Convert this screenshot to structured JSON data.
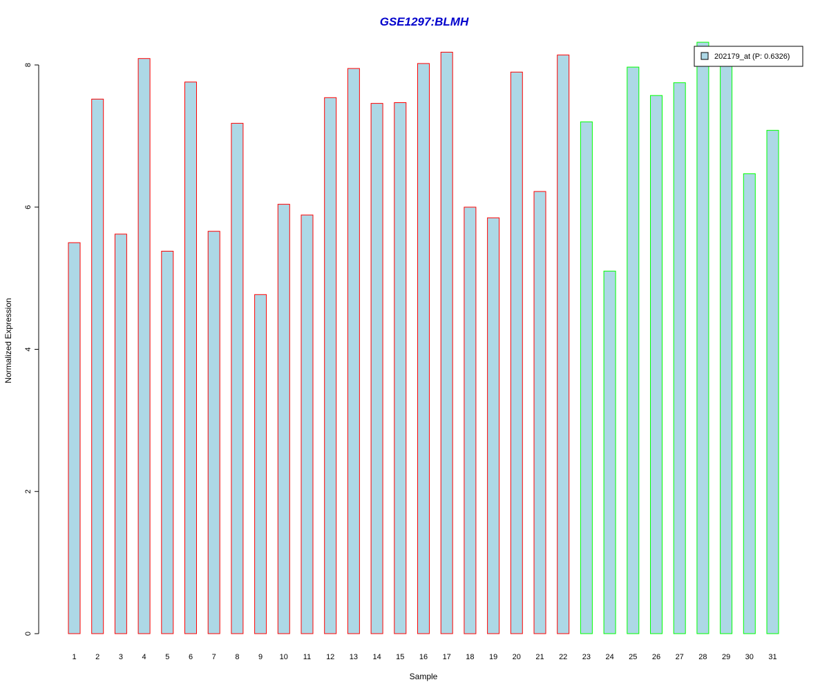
{
  "chart_data": {
    "type": "bar",
    "title": "GSE1297:BLMH",
    "xlabel": "Sample",
    "ylabel": "Normalized Expression",
    "ylim": [
      0,
      8
    ],
    "yticks": [
      0,
      2,
      4,
      6,
      8
    ],
    "grid": false,
    "legend": {
      "position": "top-right",
      "entries": [
        "202179_at (P: 0.6326)"
      ]
    },
    "categories": [
      "1",
      "2",
      "3",
      "4",
      "5",
      "6",
      "7",
      "8",
      "9",
      "10",
      "11",
      "12",
      "13",
      "14",
      "15",
      "16",
      "17",
      "18",
      "19",
      "20",
      "21",
      "22",
      "23",
      "24",
      "25",
      "26",
      "27",
      "28",
      "29",
      "30",
      "31"
    ],
    "values": [
      5.5,
      7.52,
      5.62,
      8.09,
      5.38,
      7.76,
      5.66,
      7.18,
      4.77,
      6.04,
      5.89,
      7.54,
      7.95,
      7.46,
      7.47,
      8.02,
      8.18,
      6.0,
      5.85,
      7.9,
      6.22,
      8.14,
      7.2,
      5.1,
      7.97,
      7.57,
      7.75,
      8.32,
      8.1,
      6.47,
      7.08
    ],
    "groups": [
      "red",
      "red",
      "red",
      "red",
      "red",
      "red",
      "red",
      "red",
      "red",
      "red",
      "red",
      "red",
      "red",
      "red",
      "red",
      "red",
      "red",
      "red",
      "red",
      "red",
      "red",
      "red",
      "green",
      "green",
      "green",
      "green",
      "green",
      "green",
      "green",
      "green",
      "green"
    ],
    "colors": {
      "fill": "#add8e6",
      "red": "#ff0000",
      "green": "#00ff00",
      "title": "#0000cc"
    }
  }
}
